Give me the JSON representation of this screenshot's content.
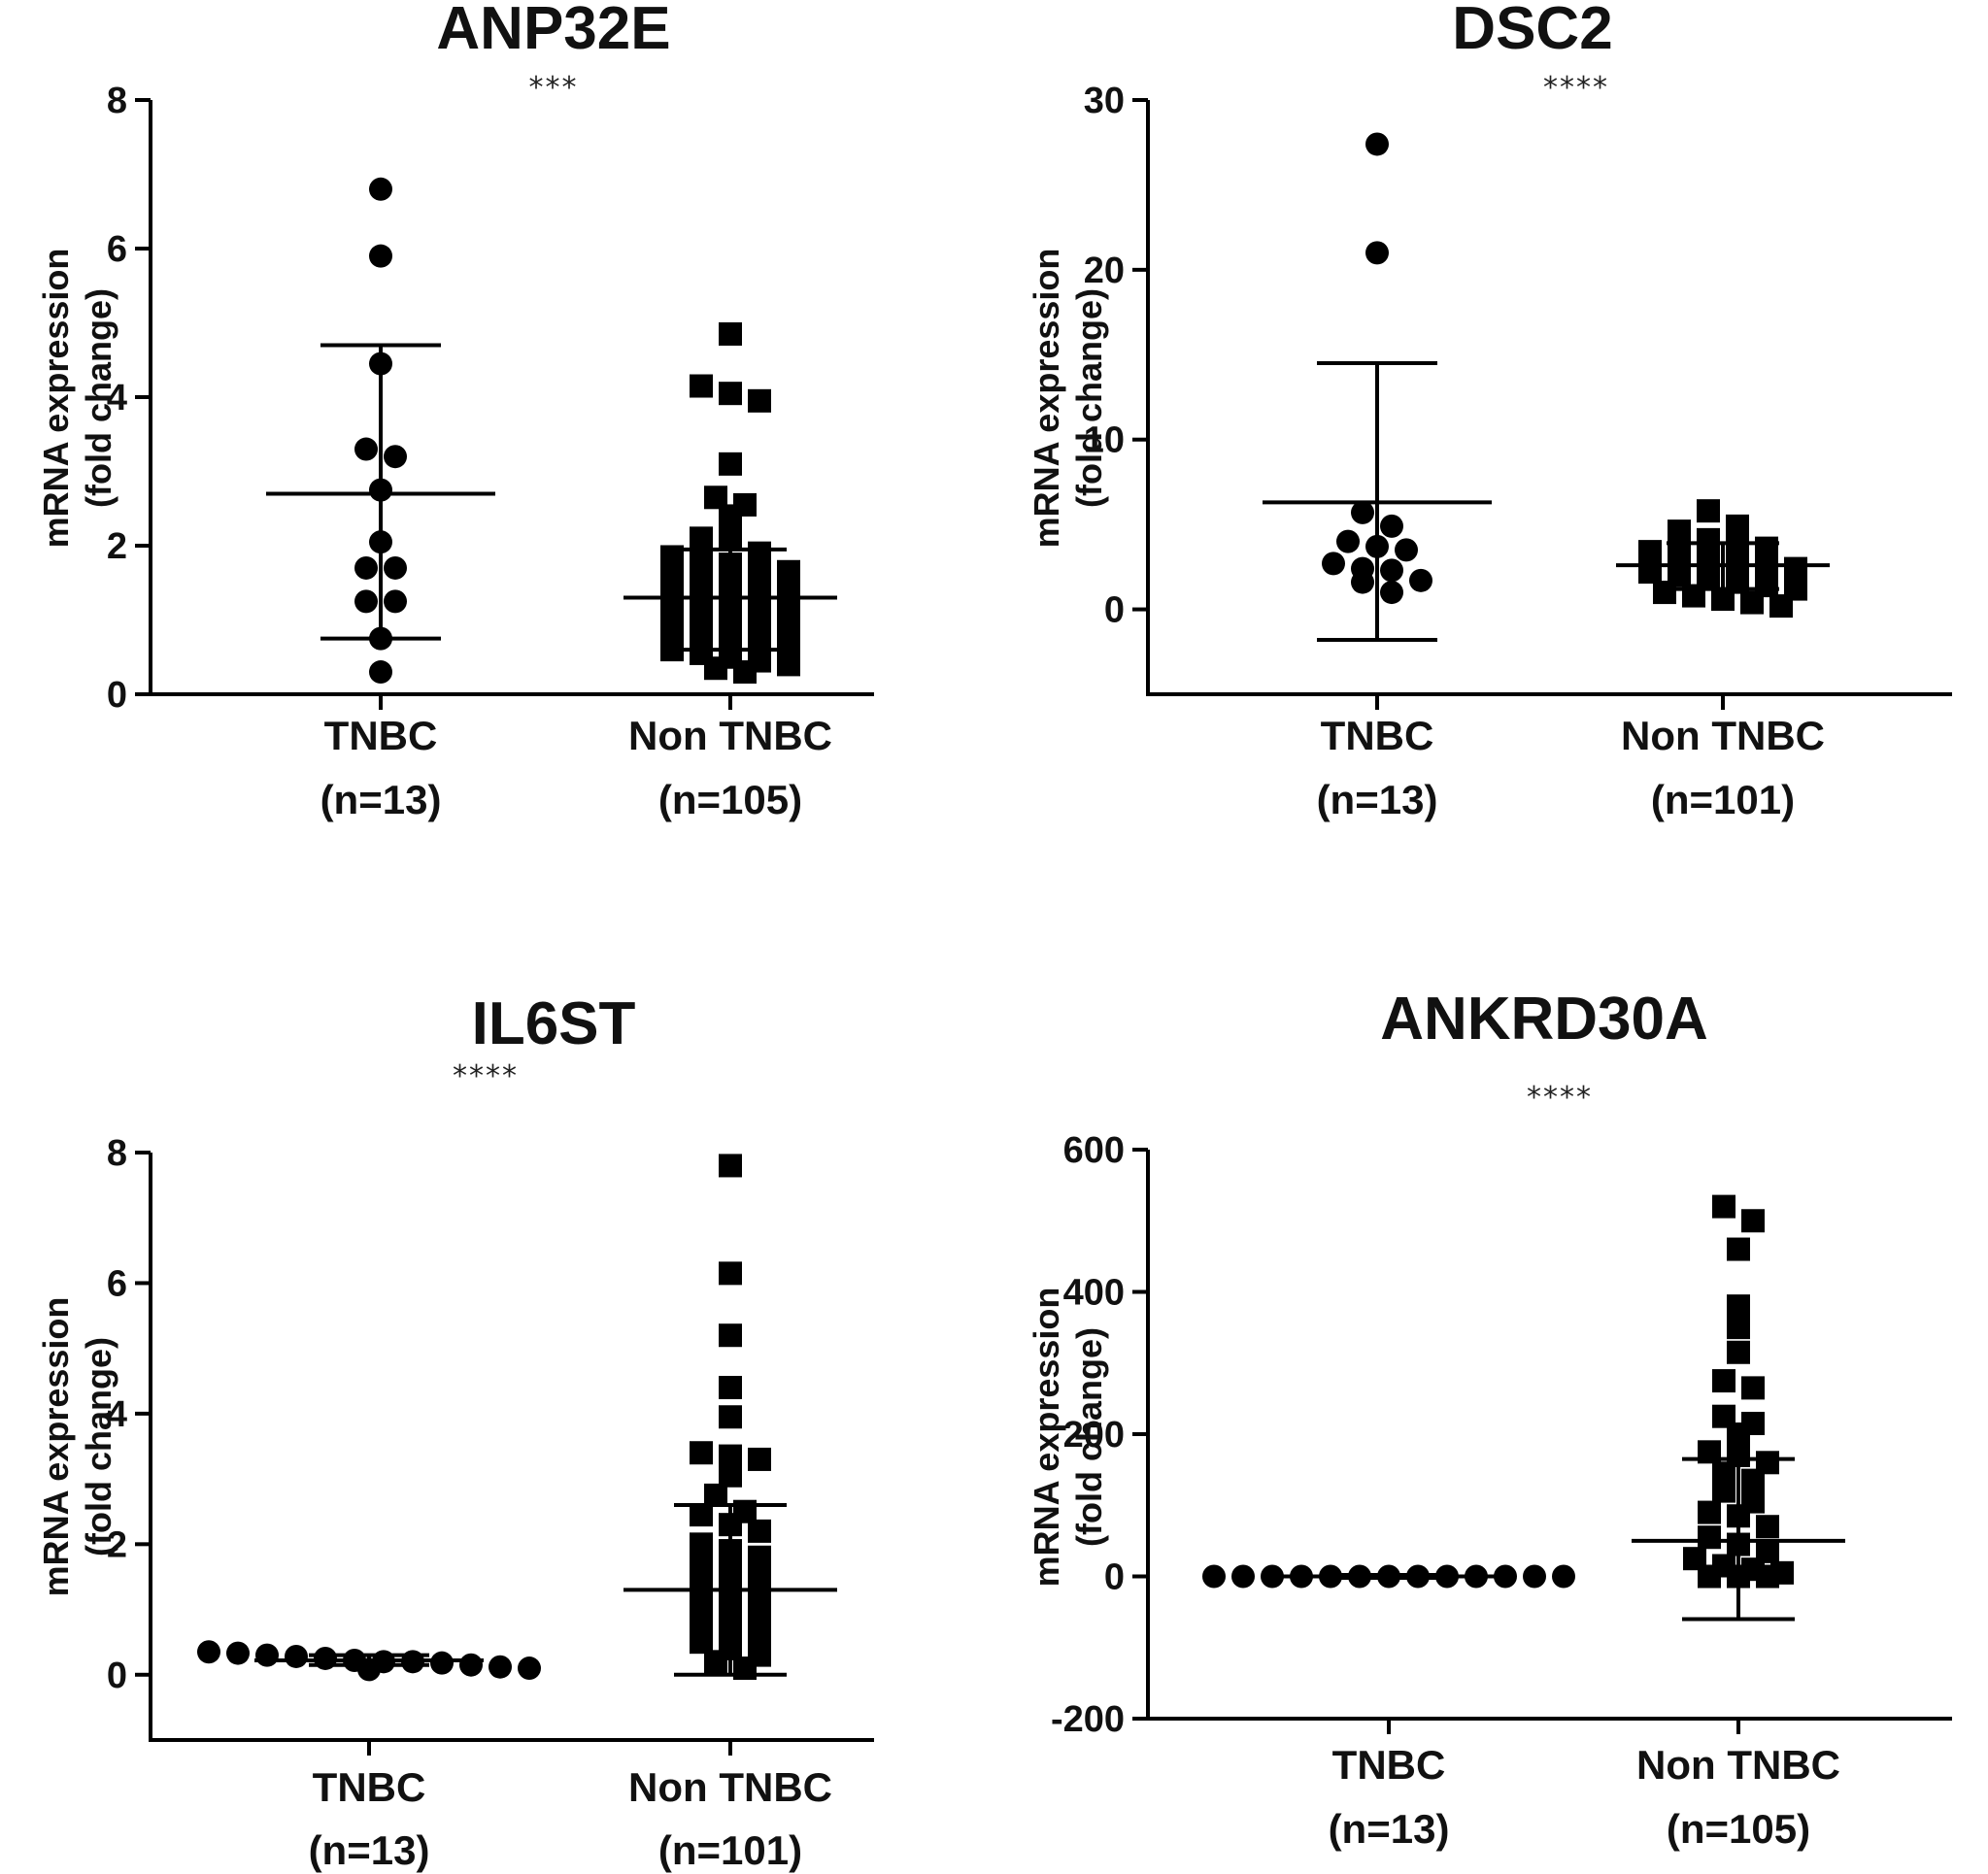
{
  "figure": {
    "y_label_line1": "mRNA expression",
    "y_label_line2": "(fold change)"
  },
  "colors": {
    "marker": "#000000",
    "axis": "#000000",
    "text": "#111111"
  },
  "chart_data": [
    {
      "type": "scatter",
      "title": "ANP32E",
      "significance": "***",
      "ylim": [
        0,
        8
      ],
      "yticks": [
        "0",
        "2",
        "4",
        "6",
        "8"
      ],
      "categories": [
        {
          "name": "TNBC",
          "n_label": "(n=13)",
          "marker": "circle"
        },
        {
          "name": "Non TNBC",
          "n_label": "(n=105)",
          "marker": "square"
        }
      ],
      "series": [
        {
          "name": "TNBC",
          "mean": 2.7,
          "sd_low": 0.75,
          "sd_high": 4.7,
          "values": [
            6.8,
            5.9,
            4.45,
            3.3,
            3.2,
            2.75,
            2.05,
            1.7,
            1.7,
            1.25,
            1.25,
            0.75,
            0.3
          ]
        },
        {
          "name": "Non TNBC",
          "mean": 1.3,
          "sd_low": 0.6,
          "sd_high": 1.95,
          "values": [
            4.85,
            4.15,
            4.05,
            3.95,
            3.1,
            2.65,
            2.55,
            2.4,
            2.1,
            2.1,
            1.9,
            1.85,
            1.8,
            1.75,
            1.7,
            1.65,
            1.6,
            1.55,
            1.5,
            1.45,
            1.4,
            1.35,
            1.3,
            1.25,
            1.2,
            1.15,
            1.1,
            1.05,
            1.0,
            0.95,
            0.9,
            0.85,
            0.8,
            0.75,
            0.7,
            0.65,
            0.6,
            0.55,
            0.5,
            0.45,
            0.4,
            0.35,
            0.3
          ]
        }
      ]
    },
    {
      "type": "scatter",
      "title": "DSC2",
      "significance": "****",
      "ylim": [
        -5,
        30
      ],
      "yticks": [
        "0",
        "10",
        "20",
        "30"
      ],
      "categories": [
        {
          "name": "TNBC",
          "n_label": "(n=13)",
          "marker": "circle"
        },
        {
          "name": "Non TNBC",
          "n_label": "(n=101)",
          "marker": "square"
        }
      ],
      "series": [
        {
          "name": "TNBC",
          "mean": 6.3,
          "sd_low": -1.8,
          "sd_high": 14.5,
          "values": [
            27.4,
            21.0,
            5.7,
            4.9,
            4.0,
            3.7,
            3.5,
            2.7,
            2.4,
            2.3,
            1.7,
            1.6,
            1.0
          ]
        },
        {
          "name": "Non TNBC",
          "mean": 2.6,
          "sd_low": 1.2,
          "sd_high": 3.9,
          "values": [
            5.8,
            4.9,
            4.6,
            4.1,
            3.8,
            3.6,
            3.4,
            3.2,
            3.0,
            2.8,
            2.6,
            2.4,
            2.2,
            2.0,
            1.8,
            1.6,
            1.4,
            1.2,
            1.0,
            0.8,
            0.6,
            0.4,
            0.2
          ]
        }
      ]
    },
    {
      "type": "scatter",
      "title": "IL6ST",
      "significance": "****",
      "ylim": [
        -1,
        8
      ],
      "yticks": [
        "0",
        "2",
        "4",
        "6",
        "8"
      ],
      "categories": [
        {
          "name": "TNBC",
          "n_label": "(n=13)",
          "marker": "circle"
        },
        {
          "name": "Non TNBC",
          "n_label": "(n=101)",
          "marker": "square"
        }
      ],
      "series": [
        {
          "name": "TNBC",
          "mean": 0.22,
          "sd_low": 0.15,
          "sd_high": 0.3,
          "values": [
            0.35,
            0.33,
            0.3,
            0.28,
            0.25,
            0.22,
            0.2,
            0.2,
            0.18,
            0.15,
            0.12,
            0.1,
            0.08
          ]
        },
        {
          "name": "Non TNBC",
          "mean": 1.3,
          "sd_low": 0.0,
          "sd_high": 2.6,
          "values": [
            7.8,
            6.15,
            5.2,
            4.4,
            3.95,
            3.4,
            3.35,
            3.3,
            3.05,
            2.75,
            2.5,
            2.45,
            2.3,
            2.2,
            2.0,
            1.9,
            1.8,
            1.7,
            1.6,
            1.5,
            1.4,
            1.3,
            1.2,
            1.1,
            1.0,
            0.9,
            0.8,
            0.7,
            0.6,
            0.5,
            0.4,
            0.3,
            0.2,
            0.1
          ]
        }
      ]
    },
    {
      "type": "scatter",
      "title": "ANKRD30A",
      "significance": "****",
      "ylim": [
        -200,
        600
      ],
      "yticks": [
        "-200",
        "0",
        "200",
        "400",
        "600"
      ],
      "categories": [
        {
          "name": "TNBC",
          "n_label": "(n=13)",
          "marker": "circle"
        },
        {
          "name": "Non TNBC",
          "n_label": "(n=105)",
          "marker": "square"
        }
      ],
      "series": [
        {
          "name": "TNBC",
          "mean": 0,
          "sd_low": -2,
          "sd_high": 2,
          "values": [
            0,
            0,
            0,
            0,
            0,
            0,
            0,
            0,
            0,
            0,
            0,
            0,
            0
          ]
        },
        {
          "name": "Non TNBC",
          "mean": 50,
          "sd_low": -60,
          "sd_high": 165,
          "values": [
            520,
            500,
            460,
            380,
            350,
            315,
            275,
            265,
            225,
            215,
            200,
            175,
            170,
            160,
            145,
            135,
            120,
            105,
            90,
            85,
            70,
            55,
            45,
            35,
            25,
            15,
            10,
            5,
            0,
            0,
            0
          ]
        }
      ]
    }
  ]
}
